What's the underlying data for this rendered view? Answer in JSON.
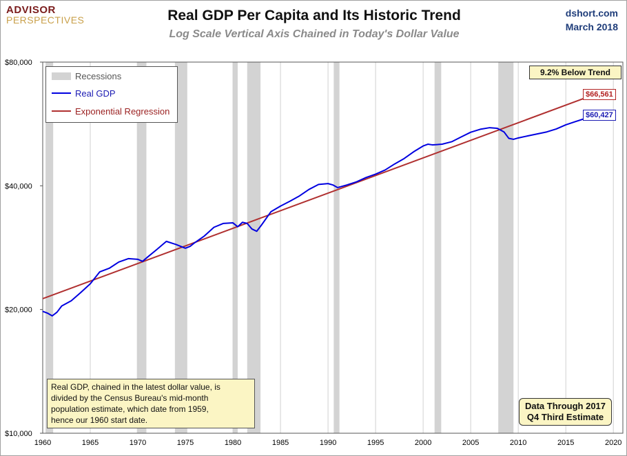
{
  "header": {
    "logo_line1": "ADVISOR",
    "logo_line2": "PERSPECTIVES",
    "title": "Real GDP Per Capita and Its Historic Trend",
    "subtitle": "Log Scale Vertical Axis Chained in Today's Dollar Value",
    "source_site": "dshort.com",
    "source_date": "March 2018"
  },
  "legend": {
    "recessions": "Recessions",
    "real_gdp": "Real GDP",
    "regression": "Exponential Regression"
  },
  "annotations": {
    "trend_box": "9.2% Below Trend",
    "regression_end_label": "$66,561",
    "gdp_end_label": "$60,427",
    "note_line1": "Real GDP, chained in  the latest dollar value, is",
    "note_line2": "divided by the Census Bureau's mid-month",
    "note_line3": "population estimate, which date from 1959,",
    "note_line4": "hence our 1960 start date.",
    "footnote_line1": "Data Through 2017",
    "footnote_line2": "Q4 Third Estimate"
  },
  "colors": {
    "gdp": "#0000e0",
    "regression": "#b03030",
    "recession": "#d3d3d3",
    "annotation_bg": "#fbf5c4"
  },
  "chart_data": {
    "type": "line",
    "title": "Real GDP Per Capita and Its Historic Trend",
    "subtitle": "Log Scale Vertical Axis Chained in Today's Dollar Value",
    "y_scale": "log",
    "ylim": [
      10000,
      80000
    ],
    "xlim": [
      1960,
      2021
    ],
    "y_ticks": [
      10000,
      20000,
      40000,
      80000
    ],
    "y_tick_labels": [
      "$10,000",
      "$20,000",
      "$40,000",
      "$80,000"
    ],
    "x_ticks": [
      1960,
      1965,
      1970,
      1975,
      1980,
      1985,
      1990,
      1995,
      2000,
      2005,
      2010,
      2015,
      2020
    ],
    "x_tick_labels": [
      "1960",
      "1965",
      "1970",
      "1975",
      "1980",
      "1985",
      "1990",
      "1995",
      "2000",
      "2005",
      "2010",
      "2015",
      "2020"
    ],
    "grid": "vertical",
    "recessions": [
      [
        1960.3,
        1961.1
      ],
      [
        1969.9,
        1970.9
      ],
      [
        1973.9,
        1975.2
      ],
      [
        1980.0,
        1980.5
      ],
      [
        1981.5,
        1982.9
      ],
      [
        1990.6,
        1991.2
      ],
      [
        2001.2,
        2001.9
      ],
      [
        2007.9,
        2009.5
      ]
    ],
    "series": [
      {
        "name": "Real GDP",
        "x": [
          1960.0,
          1960.5,
          1961.0,
          1961.5,
          1962.0,
          1963.0,
          1964.0,
          1965.0,
          1966.0,
          1967.0,
          1968.0,
          1969.0,
          1970.0,
          1970.5,
          1971.0,
          1972.0,
          1973.0,
          1974.0,
          1975.0,
          1975.5,
          1976.0,
          1977.0,
          1978.0,
          1979.0,
          1980.0,
          1980.5,
          1981.0,
          1981.5,
          1982.0,
          1982.5,
          1983.0,
          1984.0,
          1985.0,
          1986.0,
          1987.0,
          1988.0,
          1989.0,
          1990.0,
          1990.5,
          1991.0,
          1992.0,
          1993.0,
          1994.0,
          1995.0,
          1996.0,
          1997.0,
          1998.0,
          1999.0,
          2000.0,
          2000.5,
          2001.0,
          2002.0,
          2003.0,
          2004.0,
          2005.0,
          2006.0,
          2007.0,
          2007.8,
          2008.5,
          2009.0,
          2009.5,
          2010.0,
          2011.0,
          2012.0,
          2013.0,
          2014.0,
          2015.0,
          2016.0,
          2017.0,
          2017.9
        ],
        "y": [
          19800,
          19600,
          19300,
          19700,
          20400,
          21000,
          22000,
          23100,
          24700,
          25200,
          26100,
          26600,
          26500,
          26200,
          26800,
          28000,
          29300,
          28800,
          28200,
          28500,
          29100,
          30200,
          31700,
          32400,
          32500,
          31800,
          32600,
          32400,
          31400,
          31000,
          32100,
          34600,
          35700,
          36700,
          37800,
          39200,
          40300,
          40500,
          40200,
          39600,
          40200,
          40900,
          41900,
          42700,
          43700,
          45200,
          46600,
          48400,
          50000,
          50500,
          50300,
          50500,
          51200,
          52600,
          54000,
          54900,
          55400,
          55200,
          54100,
          52200,
          51900,
          52300,
          52900,
          53500,
          54100,
          55000,
          56300,
          57300,
          58300,
          60427
        ]
      },
      {
        "name": "Exponential Regression",
        "x": [
          1960.0,
          2017.9
        ],
        "y": [
          21250,
          66561
        ]
      }
    ]
  }
}
